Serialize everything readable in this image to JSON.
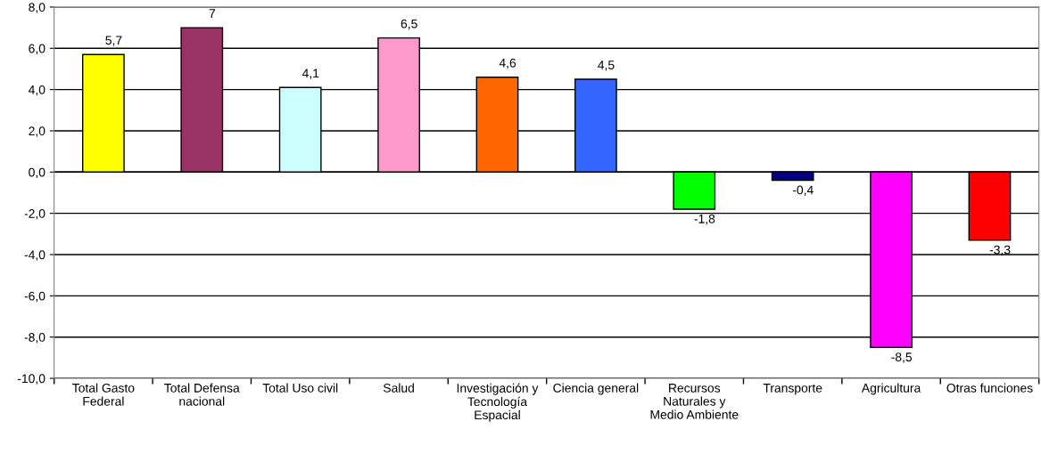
{
  "chart_data": {
    "type": "bar",
    "categories": [
      "Total Gasto Federal",
      "Total Defensa nacional",
      "Total Uso civil",
      "Salud",
      "Investigación y Tecnología Espacial",
      "Ciencia general",
      "Recursos Naturales y Medio Ambiente",
      "Transporte",
      "Agricultura",
      "Otras funciones"
    ],
    "values": [
      5.7,
      7,
      4.1,
      6.5,
      4.6,
      4.5,
      -1.8,
      -0.4,
      -8.5,
      -3.3
    ],
    "colors": [
      "#ffff00",
      "#993366",
      "#ccffff",
      "#ff99cc",
      "#ff6600",
      "#3366ff",
      "#00ff00",
      "#000080",
      "#ff00ff",
      "#ff0000"
    ],
    "value_labels": [
      "5,7",
      "7",
      "4,1",
      "6,5",
      "4,6",
      "4,5",
      "-1,8",
      "-0,4",
      "-8,5",
      "-3,3"
    ],
    "ylim": [
      -10,
      8
    ],
    "yticks": [
      {
        "value": -10,
        "label": "-10,0"
      },
      {
        "value": -8,
        "label": "-8,0"
      },
      {
        "value": -6,
        "label": "-6,0"
      },
      {
        "value": -4,
        "label": "-4,0"
      },
      {
        "value": -2,
        "label": "-2,0"
      },
      {
        "value": 0,
        "label": "0,0"
      },
      {
        "value": 2,
        "label": "2,0"
      },
      {
        "value": 4,
        "label": "4,0"
      },
      {
        "value": 6,
        "label": "6,0"
      },
      {
        "value": 8,
        "label": "8,0"
      }
    ],
    "grid": "y"
  }
}
